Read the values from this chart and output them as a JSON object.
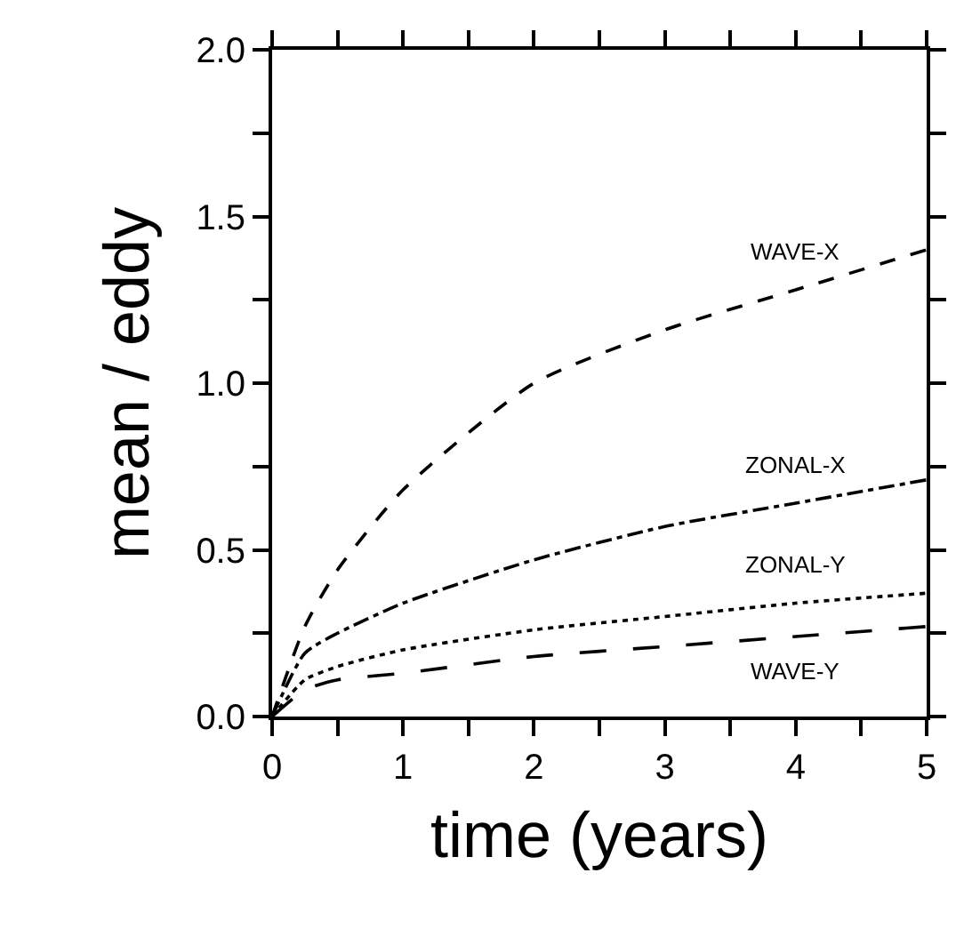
{
  "chart_data": {
    "type": "line",
    "xlabel": "time (years)",
    "ylabel": "mean / eddy",
    "x": [
      0,
      0.25,
      0.5,
      1,
      2,
      3,
      4,
      5
    ],
    "series": [
      {
        "name": "WAVE-X",
        "color": "#000000",
        "line_style": "dashed",
        "values": [
          0,
          0.27,
          0.44,
          0.68,
          1.0,
          1.16,
          1.28,
          1.4
        ]
      },
      {
        "name": "ZONAL-X",
        "color": "#000000",
        "line_style": "dashdot",
        "values": [
          0,
          0.19,
          0.25,
          0.34,
          0.47,
          0.57,
          0.64,
          0.71
        ]
      },
      {
        "name": "ZONAL-Y",
        "color": "#000000",
        "line_style": "dotted",
        "values": [
          0,
          0.11,
          0.15,
          0.2,
          0.26,
          0.3,
          0.34,
          0.37
        ]
      },
      {
        "name": "WAVE-Y",
        "color": "#000000",
        "line_style": "longdash",
        "values": [
          0,
          0.08,
          0.11,
          0.13,
          0.18,
          0.21,
          0.24,
          0.27
        ]
      }
    ],
    "xlim": [
      0,
      5
    ],
    "xticks": [
      0,
      {
        "value": 0.5,
        "label": null
      },
      1,
      {
        "value": 1.5,
        "label": null
      },
      2,
      {
        "value": 2.5,
        "label": null
      },
      3,
      {
        "value": 3.5,
        "label": null
      },
      4,
      {
        "value": 4.5,
        "label": null
      },
      5
    ],
    "ylim": [
      0,
      2.0
    ],
    "yticks": [
      {
        "value": 0,
        "label": "0.0"
      },
      {
        "value": 0.25,
        "label": null
      },
      0.5,
      {
        "value": 0.75,
        "label": null
      },
      {
        "value": 1.0,
        "label": "1.0"
      },
      {
        "value": 1.25,
        "label": null
      },
      1.5,
      {
        "value": 1.75,
        "label": null
      },
      {
        "value": 2.0,
        "label": "2.0"
      }
    ],
    "grid": false,
    "legend": false,
    "marker": "none"
  }
}
